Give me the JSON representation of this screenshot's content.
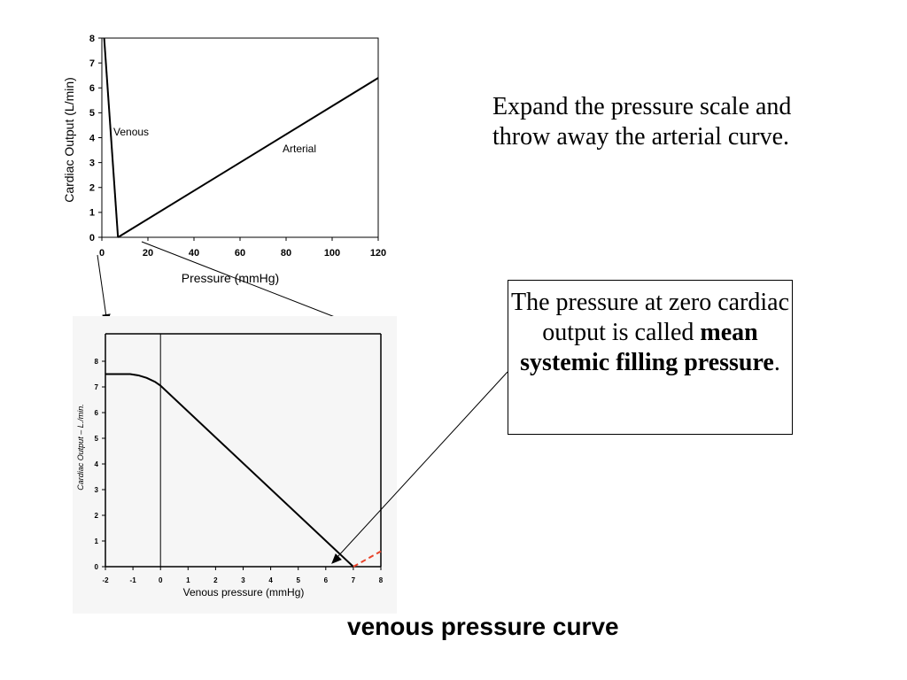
{
  "chart_data": [
    {
      "type": "line",
      "xlabel": "Pressure (mmHg)",
      "ylabel": "Cardiac Output (L/min)",
      "xlim": [
        0,
        120
      ],
      "ylim": [
        0,
        8
      ],
      "xticks": [
        0,
        20,
        40,
        60,
        80,
        100,
        120
      ],
      "yticks": [
        0,
        1,
        2,
        3,
        4,
        5,
        6,
        7,
        8
      ],
      "series": [
        {
          "name": "Venous",
          "x": [
            1,
            7
          ],
          "y": [
            8,
            0
          ]
        },
        {
          "name": "Arterial",
          "x": [
            7,
            120
          ],
          "y": [
            0,
            6.4
          ]
        }
      ],
      "annotations": [
        "Venous",
        "Arterial"
      ],
      "grid": false
    },
    {
      "type": "line",
      "xlabel": "Venous pressure (mmHg)",
      "ylabel": "Cardiac Output – L./min.",
      "xlim": [
        -2,
        8
      ],
      "ylim": [
        0,
        8
      ],
      "xticks": [
        -2,
        -1,
        0,
        1,
        2,
        3,
        4,
        5,
        6,
        7,
        8
      ],
      "yticks": [
        0,
        1,
        2,
        3,
        4,
        5,
        6,
        7,
        8
      ],
      "series": [
        {
          "name": "",
          "x": [
            -2,
            -1.1,
            -0.8,
            -0.5,
            -0.2,
            0,
            7
          ],
          "y": [
            7.5,
            7.5,
            7.45,
            7.35,
            7.2,
            7.05,
            0
          ]
        },
        {
          "name": "",
          "style": "dashed",
          "color": "#e8432a",
          "x": [
            7,
            8
          ],
          "y": [
            0,
            0.6
          ]
        }
      ],
      "grid": false
    }
  ],
  "text": {
    "top_note": "Expand the pressure scale and throw away the arterial curve.",
    "box_note_pre": "The pressure at zero cardiac output is called ",
    "box_note_bold": "mean systemic filling pressure",
    "box_note_post": ".",
    "caption": "venous pressure curve"
  },
  "colors": {
    "line": "#000000",
    "dashed": "#e8432a"
  }
}
